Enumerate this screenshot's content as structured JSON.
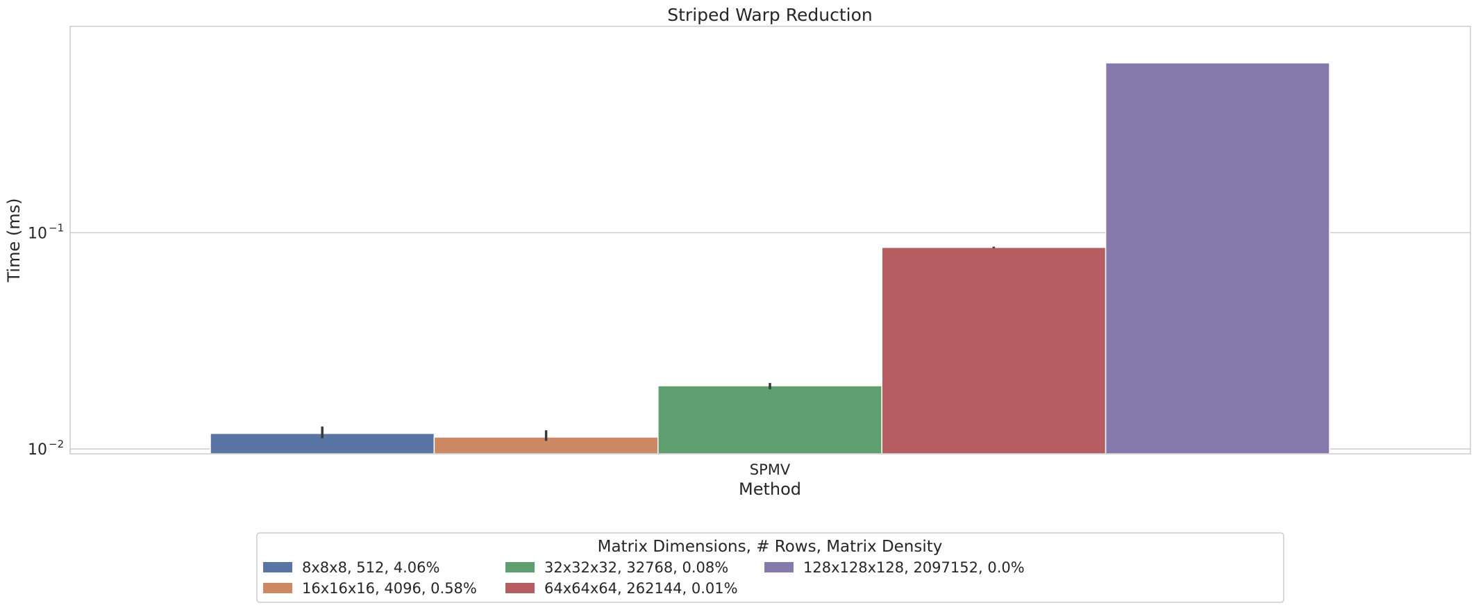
{
  "chart_data": {
    "type": "bar",
    "title": "Striped Warp Reduction",
    "xlabel": "Method",
    "ylabel": "Time (ms)",
    "yscale": "log",
    "ylim": [
      0.0095,
      0.9
    ],
    "grid": true,
    "categories": [
      "SPMV"
    ],
    "y_ticks": [
      {
        "value": 0.01,
        "label": "10",
        "exponent": "−2"
      },
      {
        "value": 0.1,
        "label": "10",
        "exponent": "−1"
      }
    ],
    "legend": {
      "title": "Matrix Dimensions, # Rows, Matrix Density",
      "position": "bottom-center",
      "columns": 4
    },
    "series": [
      {
        "name": "8x8x8, 512, 4.06%",
        "color": "#5875a4",
        "values": [
          0.0118
        ],
        "err_low": [
          0.0112
        ],
        "err_high": [
          0.0127
        ]
      },
      {
        "name": "16x16x16, 4096, 0.58%",
        "color": "#cc8963",
        "values": [
          0.01135
        ],
        "err_low": [
          0.0109
        ],
        "err_high": [
          0.0122
        ]
      },
      {
        "name": "32x32x32, 32768, 0.08%",
        "color": "#5f9e6e",
        "values": [
          0.0196
        ],
        "err_low": [
          0.0189
        ],
        "err_high": [
          0.0202
        ]
      },
      {
        "name": "64x64x64, 262144, 0.01%",
        "color": "#b55d60",
        "values": [
          0.0855
        ],
        "err_low": [
          0.0849
        ],
        "err_high": [
          0.0862
        ]
      },
      {
        "name": "128x128x128, 2097152, 0.0%",
        "color": "#857aab",
        "values": [
          0.61
        ],
        "err_low": [
          0.61
        ],
        "err_high": [
          0.61
        ]
      }
    ]
  }
}
